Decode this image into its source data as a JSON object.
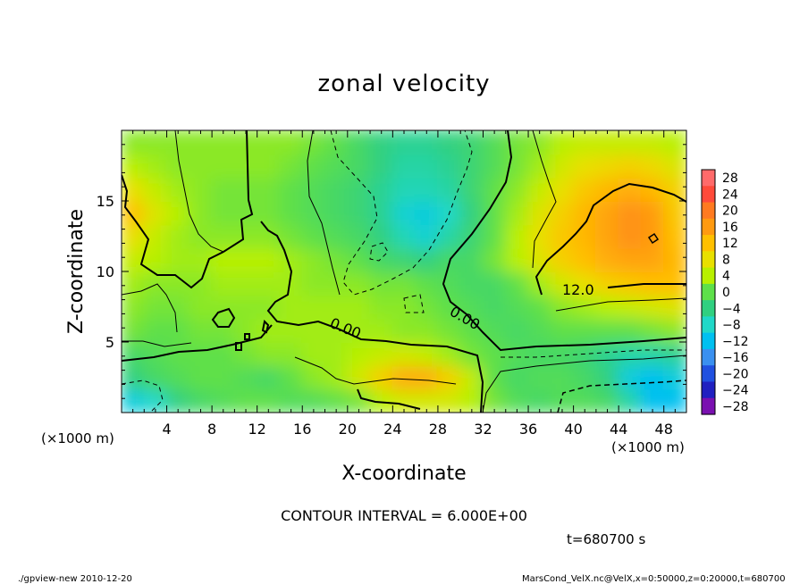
{
  "chart_data": {
    "type": "heatmap",
    "title": "zonal velocity",
    "xlabel": "X-coordinate",
    "ylabel": "Z-coordinate",
    "x_unit": "(×1000 m)",
    "y_unit": "(×1000 m)",
    "xlim": [
      0,
      50
    ],
    "ylim": [
      0,
      20
    ],
    "x_ticks": [
      4,
      8,
      12,
      16,
      20,
      24,
      28,
      32,
      36,
      40,
      44,
      48
    ],
    "y_ticks": [
      5,
      10,
      15
    ],
    "colorbar": {
      "levels": [
        28,
        24,
        20,
        16,
        12,
        8,
        4,
        0,
        -4,
        -8,
        -12,
        -16,
        -20,
        -24,
        -28
      ],
      "colors": [
        "#ff6a6a",
        "#ff4a3a",
        "#ff7a20",
        "#ff9a10",
        "#ffc000",
        "#e8e000",
        "#b8f000",
        "#5ee04a",
        "#30d080",
        "#20d8c8",
        "#00c0f0",
        "#3a90f0",
        "#2050e0",
        "#2020c0",
        "#7a10b0"
      ]
    },
    "contour_labels": [
      "12.0",
      "0.00",
      "0.00"
    ],
    "contour_interval": "CONTOUR INTERVAL = 6.000E+00",
    "time_label": "t=680700 s",
    "footer_left": "./gpview-new   2010-12-20",
    "footer_right": "MarsCond_VelX.nc@VelX,x=0:50000,z=0:20000,t=680700",
    "field": [
      [
        -10,
        -8,
        -4,
        -2,
        -1,
        0,
        0,
        -1,
        -1,
        0,
        1,
        4,
        6,
        6,
        6,
        4,
        1,
        -1,
        -2,
        -1,
        -1,
        -2,
        -6,
        -12,
        -12
      ],
      [
        -4,
        -2,
        -1,
        0,
        0,
        -1,
        -2,
        0,
        2,
        3,
        6,
        10,
        14,
        14,
        10,
        5,
        0,
        -2,
        -1,
        -1,
        -2,
        -4,
        -10,
        -12,
        -10
      ],
      [
        -2,
        -1,
        0,
        0,
        0,
        1,
        2,
        2,
        3,
        3,
        4,
        5,
        6,
        5,
        3,
        1,
        0,
        -1,
        -2,
        -2,
        -3,
        -5,
        -6,
        -6,
        -5
      ],
      [
        1,
        0,
        0,
        1,
        1,
        2,
        3,
        3,
        3,
        3,
        3,
        3,
        2,
        2,
        1,
        0,
        -1,
        -2,
        -1,
        0,
        0,
        0,
        0,
        1,
        2
      ],
      [
        2,
        1,
        1,
        2,
        2,
        2,
        2,
        3,
        3,
        3,
        3,
        2,
        2,
        1,
        0,
        -1,
        -2,
        -1,
        0,
        2,
        3,
        4,
        5,
        6,
        7
      ],
      [
        3,
        2,
        2,
        2,
        3,
        3,
        3,
        3,
        2,
        2,
        2,
        1,
        1,
        0,
        -1,
        -2,
        -2,
        0,
        3,
        6,
        8,
        10,
        11,
        12,
        12
      ],
      [
        5,
        4,
        3,
        3,
        4,
        4,
        4,
        3,
        2,
        1,
        0,
        -2,
        -3,
        -4,
        -2,
        -2,
        1,
        4,
        7,
        10,
        12,
        14,
        15,
        15,
        13
      ],
      [
        8,
        5,
        3,
        2,
        2,
        2,
        2,
        1,
        0,
        -1,
        -2,
        -4,
        -7,
        -9,
        -6,
        -3,
        0,
        4,
        8,
        11,
        13,
        15,
        17,
        16,
        12
      ],
      [
        12,
        7,
        4,
        2,
        1,
        1,
        1,
        0,
        -1,
        -2,
        -3,
        -5,
        -9,
        -10,
        -8,
        -4,
        0,
        3,
        7,
        10,
        13,
        15,
        17,
        16,
        11
      ],
      [
        8,
        5,
        3,
        2,
        1,
        1,
        1,
        0,
        -1,
        -2,
        -3,
        -5,
        -7,
        -7,
        -6,
        -3,
        0,
        2,
        5,
        8,
        11,
        13,
        14,
        13,
        10
      ],
      [
        4,
        3,
        2,
        2,
        2,
        2,
        2,
        1,
        0,
        -1,
        -2,
        -4,
        -6,
        -6,
        -5,
        -3,
        -1,
        1,
        3,
        6,
        8,
        9,
        10,
        9,
        7
      ],
      [
        2,
        2,
        2,
        2,
        2,
        2,
        2,
        2,
        1,
        0,
        -2,
        -4,
        -5,
        -5,
        -4,
        -3,
        -1,
        1,
        2,
        4,
        5,
        5,
        5,
        5,
        4
      ]
    ]
  }
}
